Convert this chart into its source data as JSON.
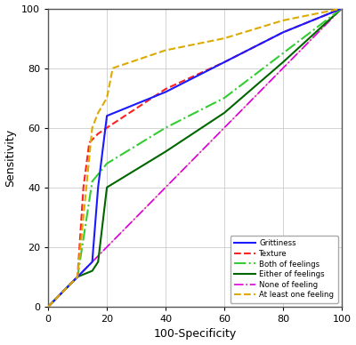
{
  "title": "",
  "xlabel": "100-Specificity",
  "ylabel": "Sensitivity",
  "xlim": [
    0,
    100
  ],
  "ylim": [
    0,
    100
  ],
  "xticks": [
    0,
    20,
    40,
    60,
    80,
    100
  ],
  "yticks": [
    0,
    20,
    40,
    60,
    80,
    100
  ],
  "background_color": "#ffffff",
  "grid_color": "#cccccc",
  "reference_line_color": "#e8b4b4",
  "grittiness": {
    "x": [
      0,
      10,
      15,
      17,
      20,
      40,
      60,
      80,
      100
    ],
    "y": [
      0,
      10,
      15,
      40,
      64,
      72,
      82,
      92,
      100
    ],
    "color": "#1a1aff",
    "linestyle": "-",
    "linewidth": 1.5,
    "label": "Grittiness"
  },
  "texture": {
    "x": [
      0,
      10,
      12,
      14,
      17,
      20,
      40,
      60,
      80,
      100
    ],
    "y": [
      0,
      10,
      40,
      55,
      58,
      60,
      73,
      82,
      92,
      100
    ],
    "color": "#ff2222",
    "linestyle": "--",
    "linewidth": 1.5,
    "label": "Texture"
  },
  "both_feelings": {
    "x": [
      0,
      10,
      15,
      20,
      40,
      60,
      80,
      100
    ],
    "y": [
      0,
      10,
      42,
      48,
      60,
      70,
      85,
      100
    ],
    "color": "#33cc33",
    "linestyle": "-.",
    "linewidth": 1.5,
    "label": "Both of feelings"
  },
  "either_feelings": {
    "x": [
      0,
      10,
      15,
      17,
      20,
      40,
      60,
      80,
      100
    ],
    "y": [
      0,
      10,
      12,
      15,
      40,
      52,
      65,
      82,
      100
    ],
    "color": "#006600",
    "linestyle": "-",
    "linewidth": 1.5,
    "label": "Either of feelings"
  },
  "none_feeling": {
    "x": [
      0,
      10,
      15,
      17,
      20,
      40,
      60,
      80,
      100
    ],
    "y": [
      0,
      10,
      15,
      17,
      20,
      40,
      60,
      80,
      100
    ],
    "color": "#dd00dd",
    "linestyle": "-.",
    "linewidth": 1.2,
    "label": "None of feeling"
  },
  "at_least_one": {
    "x": [
      0,
      10,
      15,
      17,
      20,
      22,
      40,
      60,
      80,
      100
    ],
    "y": [
      0,
      10,
      60,
      65,
      70,
      80,
      86,
      90,
      96,
      100
    ],
    "color": "#ddaa00",
    "linestyle": "--",
    "linewidth": 1.5,
    "label": "At least one feeling"
  }
}
